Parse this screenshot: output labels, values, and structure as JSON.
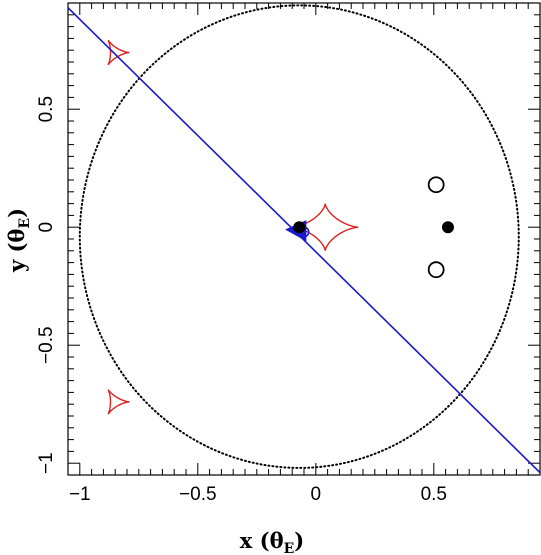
{
  "chart_data": {
    "type": "scatter",
    "xlabel": "x (θE)",
    "ylabel": "y (θE)",
    "axis_labels": {
      "x_main": "x (θ",
      "x_sub": "E",
      "x_close": ")",
      "y_main": "y (θ",
      "y_sub": "E",
      "y_close": ")"
    },
    "xlim": [
      -1.05,
      0.95
    ],
    "ylim": [
      -1.05,
      0.95
    ],
    "x_ticks": [
      {
        "value": -1,
        "label": "−1"
      },
      {
        "value": -0.5,
        "label": "−0.5"
      },
      {
        "value": 0,
        "label": "0"
      },
      {
        "value": 0.5,
        "label": "0.5"
      }
    ],
    "y_ticks": [
      {
        "value": -1,
        "label": "−1"
      },
      {
        "value": -0.5,
        "label": "−0.5"
      },
      {
        "value": 0,
        "label": "0"
      },
      {
        "value": 0.5,
        "label": "0.5"
      }
    ],
    "grid": false,
    "colors": {
      "caustic": "#e02020",
      "trajectory": "#1a1acc",
      "curve": "#000000"
    },
    "critical_curve": {
      "style": "dotted",
      "center": [
        -0.07,
        -0.04
      ],
      "rx": 0.93,
      "ry": 0.98
    },
    "caustics": [
      {
        "name": "central",
        "center": [
          0.04,
          0.0
        ],
        "size": 0.1,
        "kind": "astroid"
      },
      {
        "name": "upper-left",
        "center": [
          -0.85,
          0.74
        ],
        "size": 0.06,
        "kind": "triangle"
      },
      {
        "name": "lower-left",
        "center": [
          -0.85,
          -0.74
        ],
        "size": 0.06,
        "kind": "triangle"
      }
    ],
    "trajectory": {
      "x": [
        -1.05,
        0.95
      ],
      "y": [
        0.93,
        -1.04
      ]
    },
    "source": {
      "x": -0.05,
      "y": -0.02,
      "r": 0.02
    },
    "lens_masses": [
      {
        "x": -0.07,
        "y": 0.0
      },
      {
        "x": 0.56,
        "y": 0.0
      }
    ],
    "open_circles": [
      {
        "x": 0.51,
        "y": 0.18
      },
      {
        "x": 0.51,
        "y": -0.18
      }
    ]
  }
}
